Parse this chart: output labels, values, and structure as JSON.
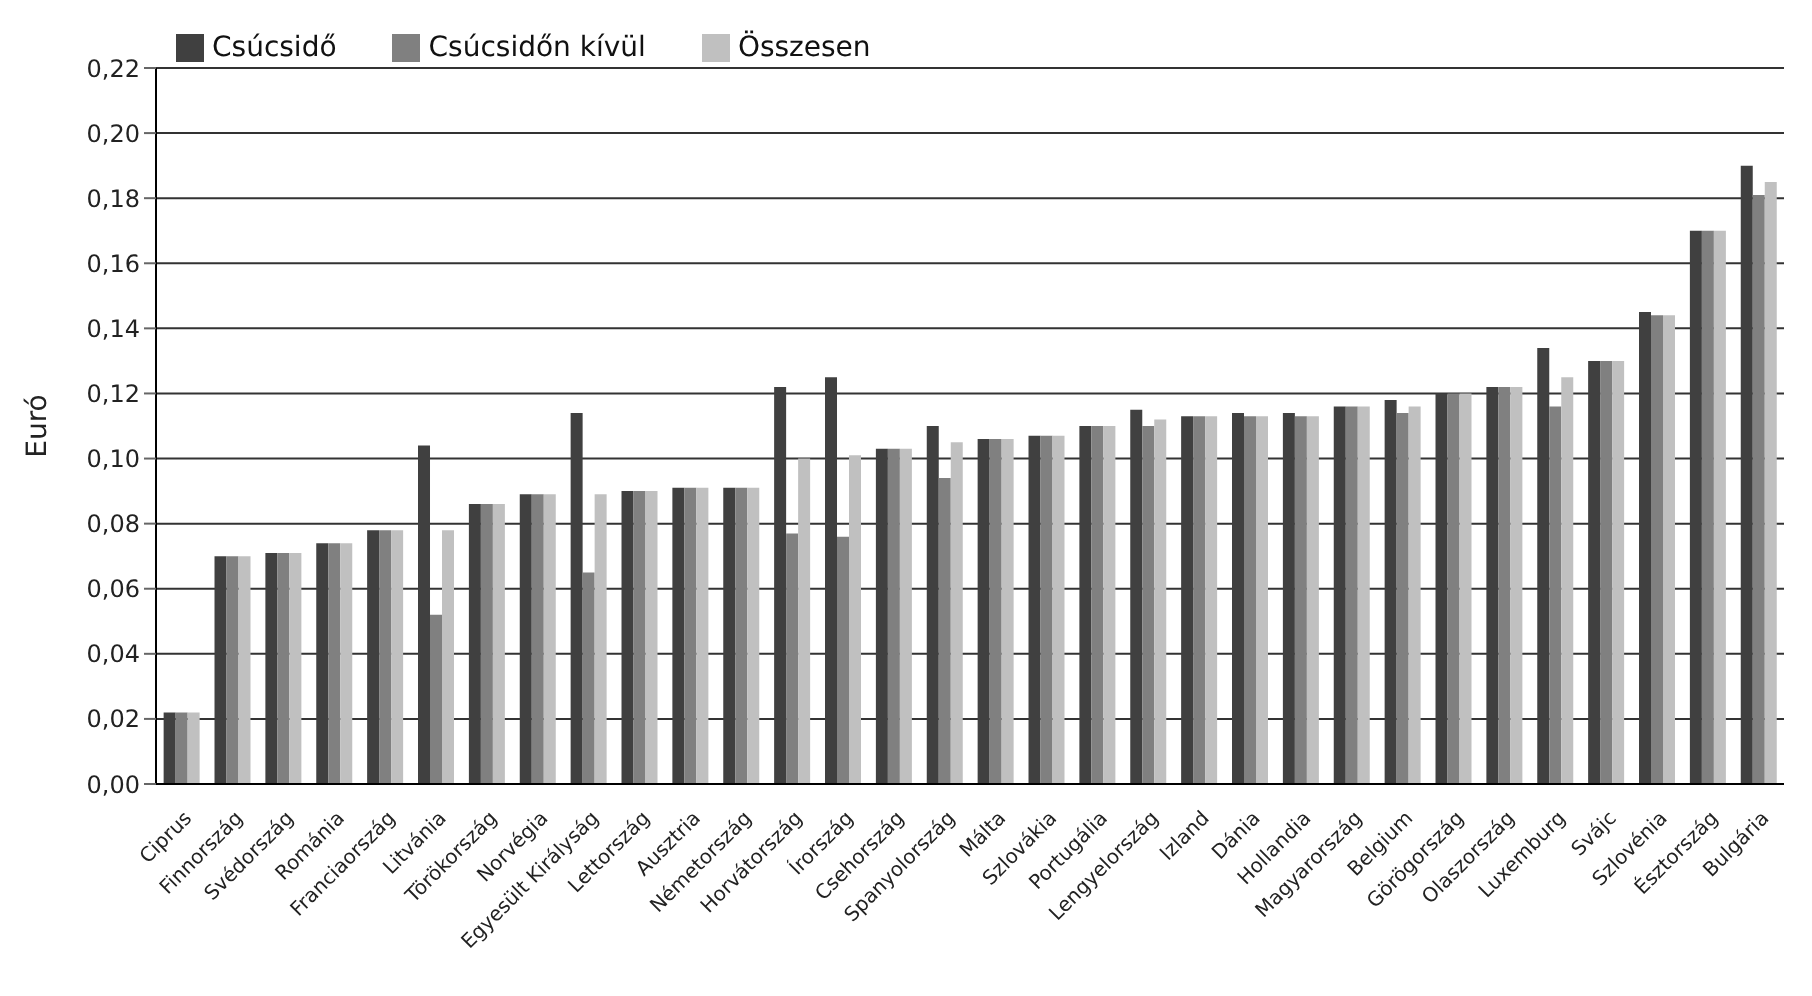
{
  "chart_data": {
    "type": "bar",
    "ylabel": "Euró",
    "categories": [
      "Ciprus",
      "Finnország",
      "Svédország",
      "Románia",
      "Franciaország",
      "Litvánia",
      "Törökország",
      "Norvégia",
      "Egyesült Királyság",
      "Lettország",
      "Ausztria",
      "Németország",
      "Horvátország",
      "Írország",
      "Csehország",
      "Spanyolország",
      "Málta",
      "Szlovákia",
      "Portugália",
      "Lengyelország",
      "Izland",
      "Dánia",
      "Hollandia",
      "Magyarország",
      "Belgium",
      "Görögország",
      "Olaszország",
      "Luxemburg",
      "Svájc",
      "Szlovénia",
      "Észtország",
      "Bulgária"
    ],
    "series": [
      {
        "name": "Csúcsidő",
        "color": "#404040",
        "values": [
          0.022,
          0.07,
          0.071,
          0.074,
          0.078,
          0.104,
          0.086,
          0.089,
          0.114,
          0.09,
          0.091,
          0.091,
          0.122,
          0.125,
          0.103,
          0.11,
          0.106,
          0.107,
          0.11,
          0.115,
          0.113,
          0.114,
          0.114,
          0.116,
          0.118,
          0.12,
          0.122,
          0.134,
          0.13,
          0.145,
          0.17,
          0.19
        ]
      },
      {
        "name": "Csúcsidőn kívül",
        "color": "#808080",
        "values": [
          0.022,
          0.07,
          0.071,
          0.074,
          0.078,
          0.052,
          0.086,
          0.089,
          0.065,
          0.09,
          0.091,
          0.091,
          0.077,
          0.076,
          0.103,
          0.094,
          0.106,
          0.107,
          0.11,
          0.11,
          0.113,
          0.113,
          0.113,
          0.116,
          0.114,
          0.12,
          0.122,
          0.116,
          0.13,
          0.144,
          0.17,
          0.181
        ]
      },
      {
        "name": "Összesen",
        "color": "#c0c0c0",
        "values": [
          0.022,
          0.07,
          0.071,
          0.074,
          0.078,
          0.078,
          0.086,
          0.089,
          0.089,
          0.09,
          0.091,
          0.091,
          0.1,
          0.101,
          0.103,
          0.105,
          0.106,
          0.107,
          0.11,
          0.112,
          0.113,
          0.113,
          0.113,
          0.116,
          0.116,
          0.12,
          0.122,
          0.125,
          0.13,
          0.144,
          0.17,
          0.185
        ]
      }
    ],
    "ylim": [
      0,
      0.22
    ],
    "yticks": [
      {
        "value": 0,
        "label": "0,00"
      },
      {
        "value": 0.02,
        "label": "0,02"
      },
      {
        "value": 0.04,
        "label": "0,04"
      },
      {
        "value": 0.06,
        "label": "0,06"
      },
      {
        "value": 0.08,
        "label": "0,08"
      },
      {
        "value": 0.1,
        "label": "0,10"
      },
      {
        "value": 0.12,
        "label": "0,12"
      },
      {
        "value": 0.14,
        "label": "0,14"
      },
      {
        "value": 0.16,
        "label": "0,16"
      },
      {
        "value": 0.18,
        "label": "0,18"
      },
      {
        "value": 0.2,
        "label": "0,20"
      },
      {
        "value": 0.22,
        "label": "0,22"
      }
    ],
    "grid": "y",
    "legend": "top left"
  }
}
